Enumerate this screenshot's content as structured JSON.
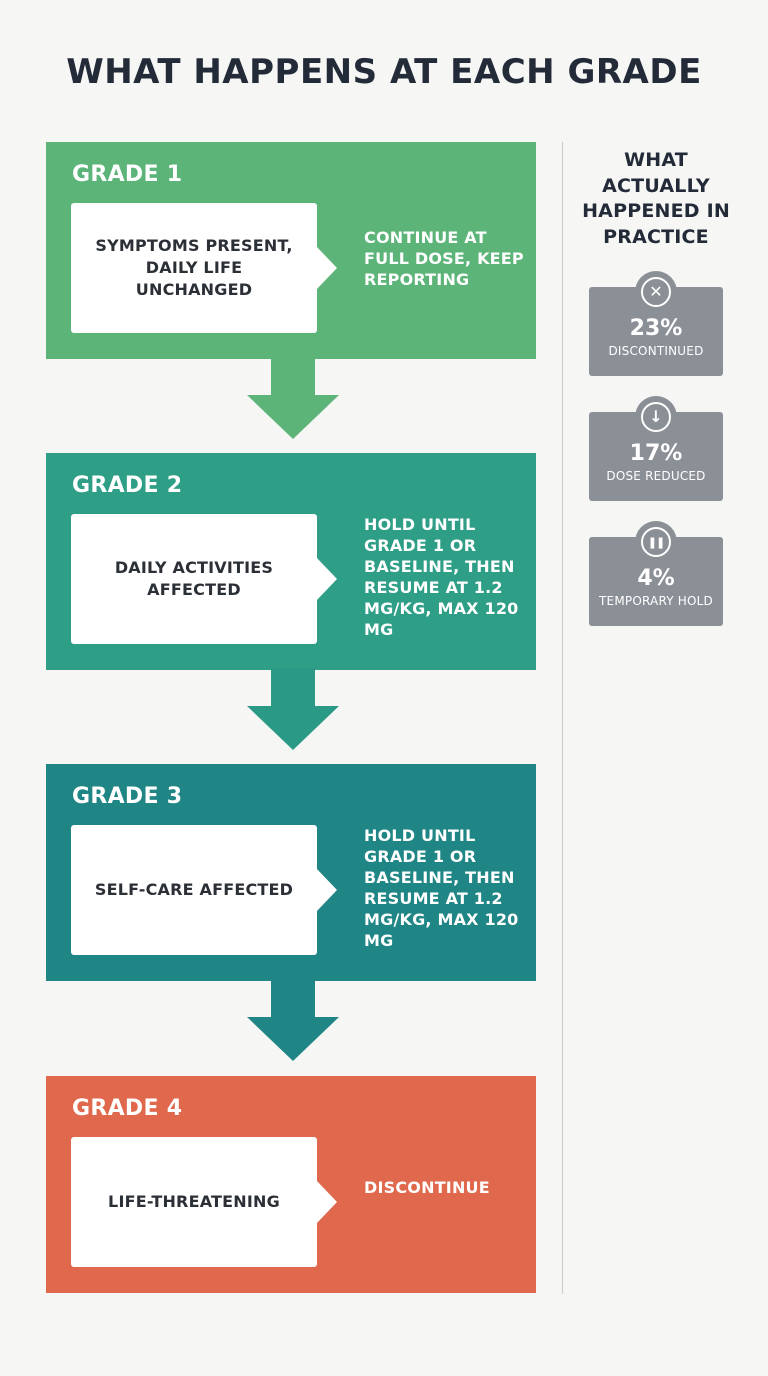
{
  "title": "WHAT HAPPENS AT EACH GRADE",
  "grades": [
    {
      "label": "GRADE 1",
      "symptom": "SYMPTOMS PRESENT, DAILY LIFE UNCHANGED",
      "action": "CONTINUE AT FULL DOSE, KEEP REPORTING",
      "color": "#5cb479"
    },
    {
      "label": "GRADE 2",
      "symptom": "DAILY ACTIVITIES AFFECTED",
      "action": "HOLD UNTIL GRADE 1 OR BASELINE, THEN RESUME AT 1.2 MG/KG, MAX 120 MG",
      "color": "#2e9e86"
    },
    {
      "label": "GRADE 3",
      "symptom": "SELF-CARE AFFECTED",
      "action": "HOLD UNTIL GRADE 1 OR BASELINE, THEN RESUME AT 1.2 MG/KG, MAX 120 MG",
      "color": "#1f8585"
    },
    {
      "label": "GRADE 4",
      "symptom": "LIFE-THREATENING",
      "action": "DISCONTINUE",
      "color": "#e0684d"
    }
  ],
  "arrow_colors": [
    "#5cb479",
    "#2a9a86",
    "#1f8585"
  ],
  "sidebar": {
    "title": "WHAT ACTUALLY HAPPENED IN PRACTICE",
    "stats": [
      {
        "icon": "close-circle-icon",
        "glyph": "✕",
        "value": "23%",
        "label": "DISCONTINUED"
      },
      {
        "icon": "arrow-down-circle-icon",
        "glyph": "↓",
        "value": "17%",
        "label": "DOSE REDUCED"
      },
      {
        "icon": "pause-circle-icon",
        "glyph": "❚❚",
        "value": "4%",
        "label": "TEMPORARY HOLD"
      }
    ],
    "card_color": "#8b9097"
  }
}
